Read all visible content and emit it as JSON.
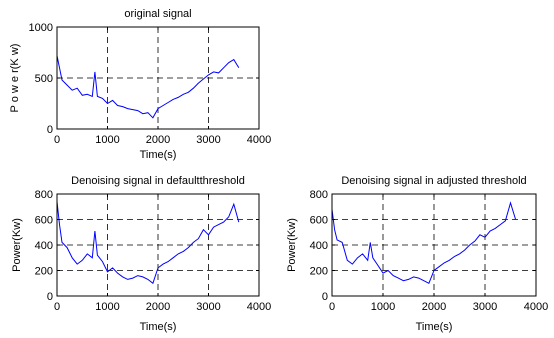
{
  "chart_data": [
    {
      "type": "line",
      "title": "original signal",
      "xlabel": "Time(s)",
      "ylabel": "P o w e r(K w)",
      "xlim": [
        0,
        4000
      ],
      "ylim": [
        0,
        1000
      ],
      "xticks": [
        0,
        1000,
        2000,
        3000,
        4000
      ],
      "yticks": [
        0,
        500,
        1000
      ],
      "grid": "dashed",
      "series": [
        {
          "color": "#0000ff",
          "x": [
            0,
            50,
            100,
            200,
            300,
            400,
            500,
            600,
            700,
            750,
            800,
            900,
            1000,
            1100,
            1200,
            1300,
            1400,
            1500,
            1600,
            1700,
            1800,
            1900,
            2000,
            2100,
            2200,
            2300,
            2400,
            2500,
            2600,
            2700,
            2800,
            2900,
            3000,
            3100,
            3200,
            3300,
            3400,
            3500,
            3600
          ],
          "y": [
            720,
            600,
            480,
            430,
            380,
            400,
            330,
            340,
            320,
            560,
            320,
            300,
            250,
            280,
            230,
            220,
            200,
            190,
            180,
            150,
            160,
            110,
            200,
            230,
            260,
            290,
            310,
            340,
            360,
            400,
            450,
            490,
            530,
            560,
            550,
            600,
            650,
            680,
            600
          ]
        }
      ]
    },
    {
      "type": "line",
      "title": "Denoising signal in defaultthreshold",
      "xlabel": "Time(s)",
      "ylabel": "Power(Kw)",
      "xlim": [
        0,
        4000
      ],
      "ylim": [
        0,
        800
      ],
      "xticks": [
        0,
        1000,
        2000,
        3000,
        4000
      ],
      "yticks": [
        0,
        200,
        400,
        600,
        800
      ],
      "grid": "dashed",
      "series": [
        {
          "color": "#0000ff",
          "x": [
            0,
            50,
            100,
            200,
            300,
            400,
            500,
            600,
            700,
            750,
            800,
            900,
            1000,
            1100,
            1200,
            1300,
            1400,
            1500,
            1600,
            1700,
            1800,
            1900,
            2000,
            2100,
            2200,
            2300,
            2400,
            2500,
            2600,
            2700,
            2800,
            2900,
            3000,
            3100,
            3200,
            3300,
            3400,
            3500,
            3600
          ],
          "y": [
            740,
            560,
            420,
            380,
            300,
            250,
            280,
            330,
            300,
            510,
            320,
            270,
            190,
            220,
            180,
            150,
            130,
            140,
            160,
            150,
            130,
            100,
            220,
            250,
            270,
            300,
            330,
            350,
            380,
            420,
            450,
            520,
            480,
            540,
            560,
            580,
            620,
            720,
            580
          ]
        }
      ]
    },
    {
      "type": "line",
      "title": "Denoising signal in adjusted threshold",
      "xlabel": "Time(s)",
      "ylabel": "Power(Kw)",
      "xlim": [
        0,
        4000
      ],
      "ylim": [
        0,
        800
      ],
      "xticks": [
        0,
        1000,
        2000,
        3000,
        4000
      ],
      "yticks": [
        0,
        200,
        400,
        600,
        800
      ],
      "grid": "dashed",
      "series": [
        {
          "color": "#0000ff",
          "x": [
            0,
            50,
            100,
            200,
            300,
            400,
            500,
            600,
            700,
            750,
            800,
            900,
            1000,
            1100,
            1200,
            1300,
            1400,
            1500,
            1600,
            1700,
            1800,
            1900,
            2000,
            2100,
            2200,
            2300,
            2400,
            2500,
            2600,
            2700,
            2800,
            2900,
            3000,
            3100,
            3200,
            3300,
            3400,
            3500,
            3600
          ],
          "y": [
            680,
            520,
            440,
            420,
            280,
            250,
            300,
            330,
            280,
            420,
            300,
            240,
            180,
            200,
            160,
            140,
            120,
            130,
            150,
            140,
            120,
            100,
            200,
            230,
            260,
            280,
            310,
            330,
            360,
            400,
            430,
            480,
            460,
            510,
            530,
            560,
            590,
            730,
            600
          ]
        }
      ]
    }
  ]
}
